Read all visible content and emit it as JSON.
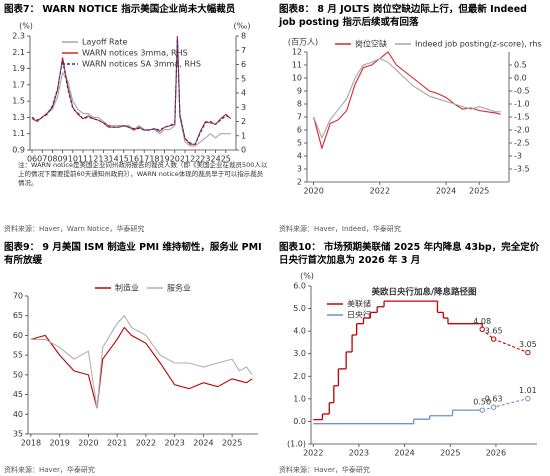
{
  "chart_data": [
    {
      "type": "line",
      "title": "图表7： WARN NOTICE 指示美国企业尚未大幅裁员",
      "source": "资料来源：Haver，Warn Notice，华泰研究",
      "note": "注：WARN notice是美国企业向州政府报告的裁员人数（即《美国企业在裁员500人以上的情况下需要提前60天通知州政府》），WARN notice体现的裁员早于可以指示裁员情况。",
      "y_label": "(%)",
      "y2_label": "(‰)",
      "x": [
        2006,
        2006.5,
        2007,
        2007.5,
        2008,
        2008.5,
        2009,
        2009.5,
        2010,
        2010.5,
        2011,
        2011.5,
        2012,
        2012.5,
        2013,
        2013.5,
        2014,
        2014.5,
        2015,
        2015.5,
        2016,
        2016.5,
        2017,
        2017.5,
        2018,
        2018.5,
        2019,
        2019.5,
        2020,
        2020.25,
        2020.5,
        2021,
        2021.5,
        2022,
        2022.5,
        2023,
        2023.5,
        2024,
        2024.5,
        2025,
        2025.5
      ],
      "series": [
        {
          "name": "Layoff Rate",
          "color": "#a6a6a6",
          "values": [
            1.3,
            1.25,
            1.3,
            1.35,
            1.4,
            1.55,
            1.85,
            1.75,
            1.5,
            1.4,
            1.35,
            1.35,
            1.3,
            1.3,
            1.25,
            1.2,
            1.2,
            1.2,
            1.2,
            1.2,
            1.15,
            1.2,
            1.15,
            1.15,
            1.15,
            1.1,
            1.15,
            1.15,
            1.2,
            2.3,
            1.3,
            1.0,
            0.95,
            0.95,
            1.0,
            1.05,
            1.1,
            1.05,
            1.1,
            1.1,
            1.1
          ]
        },
        {
          "name": "WARN notices 3mma, RHS",
          "color": "#d7262b",
          "axis": "y2",
          "values": [
            2.2,
            2.0,
            2.3,
            2.6,
            3.0,
            4.2,
            6.5,
            4.5,
            3.0,
            2.5,
            2.2,
            2.4,
            2.2,
            2.1,
            1.9,
            1.6,
            1.6,
            1.6,
            1.7,
            1.6,
            1.4,
            1.6,
            1.4,
            1.4,
            1.5,
            1.3,
            1.6,
            1.7,
            1.8,
            8.0,
            2.5,
            0.8,
            0.4,
            0.4,
            1.3,
            2.0,
            1.9,
            1.8,
            2.2,
            2.5,
            2.2
          ]
        },
        {
          "name": "WARN notices SA 3mma, RHS",
          "color": "#1f3c88",
          "axis": "y2",
          "dashed": true,
          "values": [
            2.3,
            2.1,
            2.3,
            2.5,
            3.1,
            4.3,
            6.3,
            4.3,
            2.9,
            2.6,
            2.2,
            2.3,
            2.2,
            2.1,
            1.9,
            1.7,
            1.6,
            1.6,
            1.7,
            1.6,
            1.5,
            1.5,
            1.4,
            1.4,
            1.5,
            1.4,
            1.6,
            1.7,
            1.9,
            7.8,
            2.4,
            0.8,
            0.5,
            0.4,
            1.2,
            1.9,
            2.0,
            1.8,
            2.1,
            2.4,
            2.3
          ]
        }
      ],
      "xlim": [
        2005.8,
        2026
      ],
      "xticks": [
        {
          "value": 2006,
          "label": "06"
        },
        {
          "value": 2007,
          "label": "07"
        },
        {
          "value": 2008,
          "label": "08"
        },
        {
          "value": 2009,
          "label": "09"
        },
        {
          "value": 2010,
          "label": "10"
        },
        {
          "value": 2011,
          "label": "11"
        },
        {
          "value": 2012,
          "label": "12"
        },
        {
          "value": 2013,
          "label": "13"
        },
        {
          "value": 2014,
          "label": "14"
        },
        {
          "value": 2015,
          "label": "15"
        },
        {
          "value": 2016,
          "label": "16"
        },
        {
          "value": 2017,
          "label": "17"
        },
        {
          "value": 2018,
          "label": "18"
        },
        {
          "value": 2019,
          "label": "19"
        },
        {
          "value": 2020,
          "label": "20"
        },
        {
          "value": 2021,
          "label": "21"
        },
        {
          "value": 2022,
          "label": "22"
        },
        {
          "value": 2023,
          "label": "23"
        },
        {
          "value": 2024,
          "label": "24"
        },
        {
          "value": 2025,
          "label": "25"
        }
      ],
      "ylim": [
        0.9,
        2.3
      ],
      "yticks": [
        0.9,
        1.1,
        1.3,
        1.5,
        1.7,
        1.9,
        2.1,
        2.3
      ],
      "y2lim": [
        0,
        8
      ],
      "y2ticks": [
        0,
        1,
        2,
        3,
        4,
        5,
        6,
        7,
        8
      ],
      "legend": "top-left-vertical"
    },
    {
      "type": "line",
      "title": "图表8： 8 月 JOLTS 岗位空缺边际上行，但最新 Indeed job posting 指示后续或有回落",
      "source": "资料来源：Haver，Indeed，华泰研究",
      "y_label": "(百万人)",
      "x": [
        2020,
        2020.25,
        2020.5,
        2020.75,
        2021,
        2021.25,
        2021.5,
        2021.75,
        2022,
        2022.25,
        2022.5,
        2022.75,
        2023,
        2023.25,
        2023.5,
        2023.75,
        2024,
        2024.25,
        2024.5,
        2024.75,
        2025,
        2025.25,
        2025.5,
        2025.65
      ],
      "series": [
        {
          "name": "岗位空缺",
          "color": "#d7262b",
          "values": [
            7.0,
            4.6,
            6.5,
            6.8,
            7.5,
            9.5,
            10.8,
            11.0,
            11.5,
            12.0,
            11.0,
            10.5,
            10.0,
            9.5,
            9.0,
            8.8,
            8.5,
            8.0,
            7.6,
            7.7,
            7.5,
            7.4,
            7.3,
            7.2
          ]
        },
        {
          "name": "Indeed job posting(z-score), rhs",
          "color": "#a6a6a6",
          "axis": "y2",
          "values": [
            -1.5,
            -2.3,
            -1.6,
            -1.2,
            -0.8,
            0.0,
            0.5,
            0.6,
            0.75,
            0.6,
            0.3,
            0.0,
            -0.3,
            -0.5,
            -0.7,
            -0.8,
            -0.9,
            -1.0,
            -1.1,
            -1.2,
            -1.1,
            -1.2,
            -1.3,
            -1.3
          ]
        }
      ],
      "xlim": [
        2019.8,
        2025.9
      ],
      "xticks": [
        2020,
        2022,
        2024,
        2025
      ],
      "ylim": [
        2,
        12
      ],
      "yticks": [
        2,
        3,
        4,
        5,
        6,
        7,
        8,
        9,
        10,
        11,
        12
      ],
      "y2lim": [
        -4,
        1
      ],
      "y2ticks": [
        -3.5,
        -3,
        {
          "value": -2.5,
          "label": "-2.5"
        },
        {
          "value": -2,
          "label": "-2.0"
        },
        -1.5,
        {
          "value": -1,
          "label": "-1.0"
        },
        -0.5,
        {
          "value": 0,
          "label": "0.0"
        },
        0.5
      ],
      "legend": "top-horizontal"
    },
    {
      "type": "line",
      "title": "图表9： 9 月美国 ISM 制造业 PMI 维持韧性，服务业 PMI 有所放缓",
      "source": "资料来源：Haver，华泰研究",
      "x": [
        2018,
        2018.5,
        2019,
        2019.5,
        2020,
        2020.3,
        2020.5,
        2021,
        2021.25,
        2021.5,
        2022,
        2022.5,
        2023,
        2023.5,
        2024,
        2024.5,
        2025,
        2025.25,
        2025.5,
        2025.7
      ],
      "series": [
        {
          "name": "制造业",
          "color": "#c00000",
          "values": [
            59,
            60,
            55,
            51,
            50,
            41.5,
            54,
            59,
            62,
            60,
            58,
            53,
            47.5,
            46.5,
            48,
            47,
            49,
            48.5,
            48,
            49
          ]
        },
        {
          "name": "服务业",
          "color": "#b0b0b0",
          "values": [
            59,
            59,
            57,
            54,
            56,
            41.5,
            57,
            63,
            65,
            62,
            60,
            55,
            53,
            53,
            52,
            53,
            54,
            51,
            52,
            50
          ]
        }
      ],
      "xlim": [
        2017.9,
        2025.9
      ],
      "xticks": [
        2018,
        2019,
        2020,
        2021,
        2022,
        2023,
        2024,
        2025
      ],
      "ylim": [
        35,
        70
      ],
      "yticks": [
        35,
        40,
        45,
        50,
        55,
        60,
        65,
        70
      ],
      "legend": "top-horizontal"
    },
    {
      "type": "step",
      "title": "图表10： 市场预期美联储 2025 年内降息 43bp，完全定价日央行首次加息为 2026 年 3 月",
      "source": "资料来源：Haver，华泰研究",
      "inner_title": "美欧日央行加息/降息路径图",
      "y_label": "(%)",
      "forecast_start": 2025.7,
      "series": [
        {
          "name": "美联储",
          "color": "#c00000",
          "x": [
            2022.0,
            2022.2,
            2022.35,
            2022.45,
            2022.55,
            2022.72,
            2022.85,
            2022.95,
            2023.1,
            2023.25,
            2023.4,
            2023.55,
            2024.72,
            2024.85,
            2024.95,
            2025.7,
            2025.95,
            2026.7
          ],
          "values": [
            0.08,
            0.33,
            0.83,
            1.58,
            2.33,
            3.08,
            3.83,
            4.33,
            4.58,
            4.83,
            5.08,
            5.33,
            4.83,
            4.58,
            4.33,
            4.08,
            3.65,
            3.05
          ],
          "value_labels": [
            null,
            null,
            null,
            null,
            null,
            null,
            null,
            null,
            null,
            null,
            null,
            null,
            null,
            null,
            null,
            "4.08",
            "3.65",
            "3.05"
          ]
        },
        {
          "name": "日央行",
          "color": "#6f8fc8",
          "x": [
            2022.0,
            2024.2,
            2024.55,
            2025.05,
            2025.7,
            2025.95,
            2026.7
          ],
          "values": [
            -0.1,
            0.1,
            0.25,
            0.5,
            0.5,
            0.63,
            1.01
          ],
          "value_labels": [
            null,
            null,
            null,
            null,
            "0.50",
            "0.63",
            "1.01"
          ]
        }
      ],
      "xlim": [
        2021.95,
        2026.9
      ],
      "xticks": [
        2022,
        2023,
        2024,
        2025,
        2026
      ],
      "ylim": [
        -1,
        6
      ],
      "yticks": [
        {
          "value": -1,
          "label": "(1.0)"
        },
        {
          "value": 0,
          "label": "0.0"
        },
        {
          "value": 1,
          "label": "1.0"
        },
        {
          "value": 2,
          "label": "2.0"
        },
        {
          "value": 3,
          "label": "3.0"
        },
        {
          "value": 4,
          "label": "4.0"
        },
        {
          "value": 5,
          "label": "5.0"
        },
        {
          "value": 6,
          "label": "6.0"
        }
      ],
      "legend": "top-left-vertical"
    }
  ]
}
